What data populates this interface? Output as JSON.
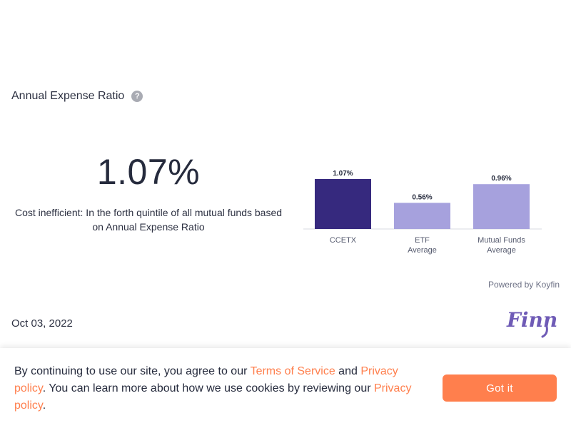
{
  "section": {
    "title": "Annual Expense Ratio",
    "help_icon": "question-circle-icon"
  },
  "summary": {
    "value": "1.07%",
    "description": "Cost inefficient: In the forth quintile of all mutual funds based on Annual Expense Ratio"
  },
  "chart_data": {
    "type": "bar",
    "title": "",
    "xlabel": "",
    "ylabel": "",
    "categories": [
      [
        "CCETX"
      ],
      [
        "ETF",
        "Average"
      ],
      [
        "Mutual Funds",
        "Average"
      ]
    ],
    "values": [
      1.07,
      0.56,
      0.96
    ],
    "value_labels": [
      "1.07%",
      "0.56%",
      "0.96%"
    ],
    "colors": [
      "#36297e",
      "#a6a1dd",
      "#a6a1dd"
    ],
    "ylim": [
      0,
      1.07
    ],
    "grid": false,
    "legend": "none"
  },
  "footer": {
    "powered_by": "Powered by Koyfin",
    "date": "Oct 03, 2022",
    "logo_text": "Finny",
    "logo_color": "#6f5bb6"
  },
  "cookie": {
    "text_1": "By continuing to use our site, you agree to our ",
    "terms_link": "Terms of Service",
    "text_2": " and ",
    "privacy_link_1": "Privacy policy",
    "text_3": ". You can learn more about how we use cookies by reviewing our ",
    "privacy_link_2": "Privacy policy",
    "text_4": ".",
    "button_label": "Got it",
    "accent": "#ff7f4d"
  }
}
